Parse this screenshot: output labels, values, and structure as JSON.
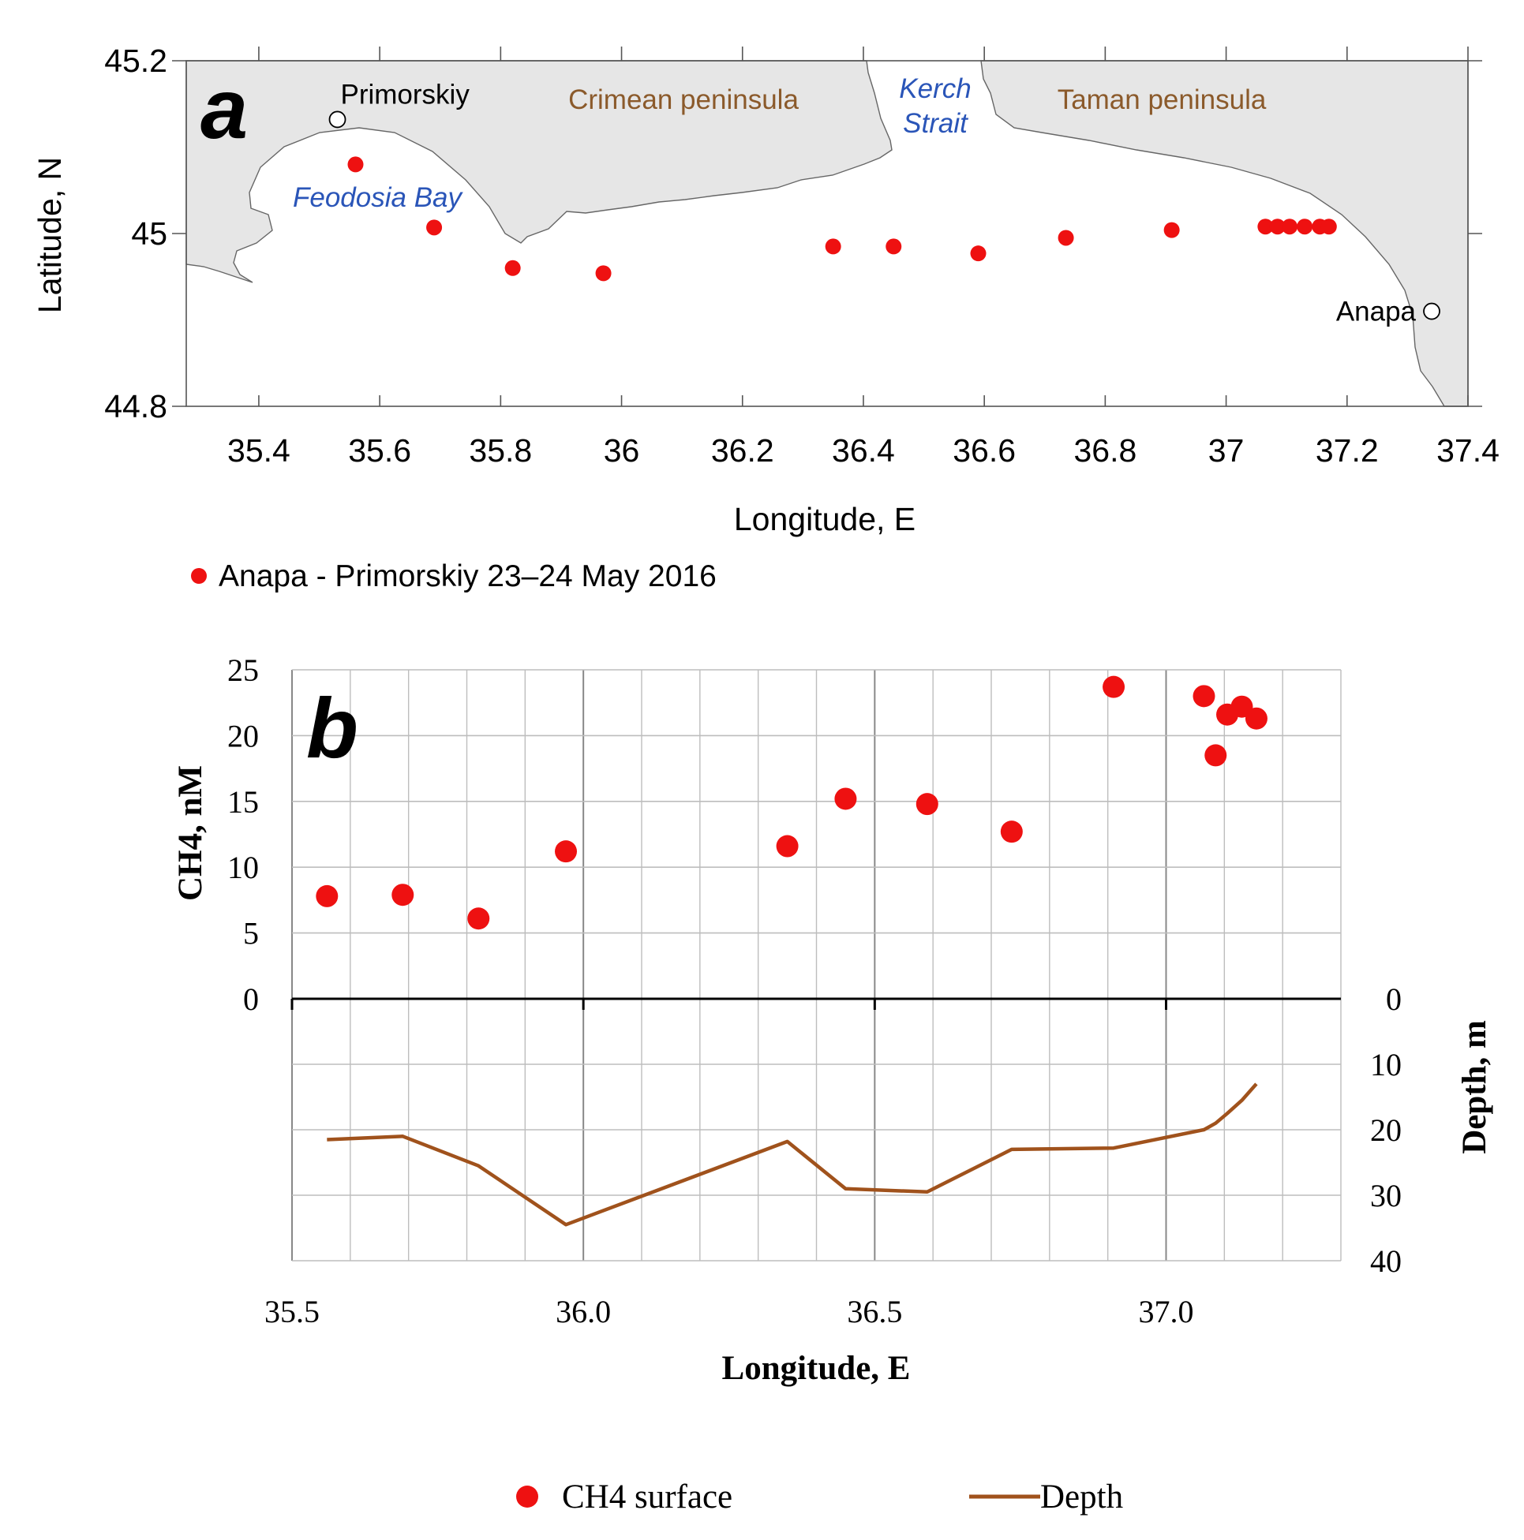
{
  "colors": {
    "point": "#ee1111",
    "depth_line": "#a0521c",
    "land": "#e6e6e6",
    "coast": "#666666",
    "place_label": "#8b5a2b",
    "water_label": "#2a55b8",
    "grid": "#bdbdbd"
  },
  "chart_data": [
    {
      "id": "a",
      "type": "scatter",
      "panel_label": "a",
      "xlabel": "Longitude, E",
      "ylabel": "Latitude, N",
      "xlim": [
        35.28,
        37.4
      ],
      "ylim": [
        44.8,
        45.2
      ],
      "x_ticks": [
        "35.4",
        "35.6",
        "35.8",
        "36",
        "36.2",
        "36.4",
        "36.6",
        "36.8",
        "37",
        "37.2",
        "37.4"
      ],
      "x_tick_values": [
        35.4,
        35.6,
        35.8,
        36.0,
        36.2,
        36.4,
        36.6,
        36.8,
        37.0,
        37.2,
        37.4
      ],
      "y_ticks": [
        "44.8",
        "45",
        "45.2"
      ],
      "y_tick_values": [
        44.8,
        45.0,
        45.2
      ],
      "legend": "Anapa - Primorskiy 23–24 May 2016",
      "stations": [
        {
          "lon": 35.56,
          "lat": 45.08
        },
        {
          "lon": 35.69,
          "lat": 45.007
        },
        {
          "lon": 35.82,
          "lat": 44.96
        },
        {
          "lon": 35.97,
          "lat": 44.954
        },
        {
          "lon": 36.35,
          "lat": 44.985
        },
        {
          "lon": 36.45,
          "lat": 44.985
        },
        {
          "lon": 36.59,
          "lat": 44.977
        },
        {
          "lon": 36.735,
          "lat": 44.995
        },
        {
          "lon": 36.91,
          "lat": 45.004
        },
        {
          "lon": 37.065,
          "lat": 45.008
        },
        {
          "lon": 37.085,
          "lat": 45.008
        },
        {
          "lon": 37.105,
          "lat": 45.008
        },
        {
          "lon": 37.13,
          "lat": 45.008
        },
        {
          "lon": 37.155,
          "lat": 45.008
        },
        {
          "lon": 37.17,
          "lat": 45.008
        }
      ],
      "towns": [
        {
          "name": "Primorskiy",
          "lon": 35.53,
          "lat": 45.132
        },
        {
          "name": "Anapa",
          "lon": 37.34,
          "lat": 44.91
        }
      ],
      "region_labels": {
        "crimea": "Crimean peninsula",
        "taman": "Taman peninsula",
        "kerch_1": "Kerch",
        "kerch_2": "Strait",
        "feodosia": "Feodosia Bay"
      }
    },
    {
      "id": "b",
      "type": "scatter",
      "panel_label": "b",
      "xlabel": "Longitude, E",
      "ylabel_left": "CH4, nM",
      "ylabel_right": "Depth, m",
      "xlim": [
        35.5,
        37.3
      ],
      "x_ticks": [
        "35.5",
        "36.0",
        "36.5",
        "37.0"
      ],
      "x_tick_values": [
        35.5,
        36.0,
        36.5,
        37.0
      ],
      "ylim_ch4": [
        0,
        25
      ],
      "ch4_ticks": [
        "0",
        "5",
        "10",
        "15",
        "20",
        "25"
      ],
      "ch4_tick_values": [
        0,
        5,
        10,
        15,
        20,
        25
      ],
      "ylim_depth": [
        0,
        40
      ],
      "depth_ticks": [
        "0",
        "10",
        "20",
        "30",
        "40"
      ],
      "depth_tick_values": [
        0,
        10,
        20,
        30,
        40
      ],
      "series": [
        {
          "name": "CH4 surface",
          "x": [
            35.56,
            35.69,
            35.82,
            35.97,
            36.35,
            36.45,
            36.59,
            36.735,
            36.91,
            37.065,
            37.085,
            37.105,
            37.13,
            37.155
          ],
          "values": [
            7.8,
            7.9,
            6.1,
            11.2,
            11.6,
            15.2,
            14.8,
            12.7,
            23.7,
            23.0,
            18.5,
            21.6,
            22.2,
            21.3
          ]
        },
        {
          "name": "Depth",
          "x": [
            35.56,
            35.69,
            35.82,
            35.97,
            36.35,
            36.45,
            36.59,
            36.735,
            36.91,
            37.065,
            37.085,
            37.105,
            37.13,
            37.155
          ],
          "values": [
            21.5,
            21.0,
            25.5,
            34.5,
            21.8,
            29.0,
            29.5,
            23.0,
            22.8,
            20.0,
            19.0,
            17.5,
            15.5,
            13.0
          ]
        }
      ],
      "legend": [
        "CH4 surface",
        "Depth"
      ]
    }
  ]
}
